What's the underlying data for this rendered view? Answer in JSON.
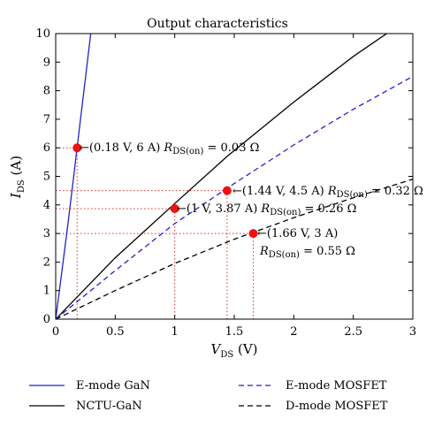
{
  "chart_data": {
    "type": "line",
    "title": "Output characteristics",
    "xlabel": {
      "main": "V",
      "sub": "DS",
      "unit": " (V)"
    },
    "ylabel": {
      "main": "I",
      "sub": "DS",
      "unit": " (A)"
    },
    "xlim": [
      0,
      3
    ],
    "ylim": [
      0,
      10
    ],
    "x_ticks": [
      "0",
      "0.5",
      "1",
      "1.5",
      "2",
      "2.5",
      "3"
    ],
    "y_ticks": [
      "0",
      "1",
      "2",
      "3",
      "4",
      "5",
      "6",
      "7",
      "8",
      "9",
      "10"
    ],
    "grid": false,
    "legend_position": "below",
    "series": [
      {
        "name": "E-mode GaN",
        "color": "#2222cc",
        "dash": "solid",
        "x": [
          0,
          0.05,
          0.1,
          0.15,
          0.2,
          0.25,
          0.3
        ],
        "y": [
          0,
          1.6,
          3.25,
          4.95,
          6.7,
          8.45,
          10.2
        ]
      },
      {
        "name": "NCTU-GaN",
        "color": "#000000",
        "dash": "solid",
        "x": [
          0,
          0.5,
          1.0,
          1.44,
          2.0,
          2.5,
          2.78
        ],
        "y": [
          0,
          2.15,
          4.05,
          5.7,
          7.6,
          9.2,
          10.0
        ]
      },
      {
        "name": "E-mode MOSFET",
        "color": "#2222cc",
        "dash": "dashed",
        "x": [
          0,
          0.5,
          1.0,
          1.5,
          2.0,
          2.5,
          3.0
        ],
        "y": [
          0,
          1.7,
          3.35,
          4.75,
          6.1,
          7.35,
          8.5
        ]
      },
      {
        "name": "D-mode MOSFET",
        "color": "#000000",
        "dash": "dashed",
        "x": [
          0,
          0.5,
          1.0,
          1.5,
          2.0,
          2.5,
          3.0
        ],
        "y": [
          0,
          1.0,
          1.95,
          2.8,
          3.55,
          4.25,
          4.9
        ]
      }
    ],
    "markers": [
      {
        "x": 0.18,
        "y": 6.0,
        "label": "←(0.18 V, 6 A) ",
        "r_main": "R",
        "r_sub": "DS(on)",
        "r_value": " = 0.03 Ω"
      },
      {
        "x": 1.44,
        "y": 4.5,
        "label": "←(1.44 V, 4.5 A) ",
        "r_main": "R",
        "r_sub": "DS(on)",
        "r_value": " = 0.32 Ω"
      },
      {
        "x": 1.0,
        "y": 3.87,
        "label": "←(1 V, 3.87 A) ",
        "r_main": "R",
        "r_sub": "DS(on)",
        "r_value": " = 0.26 Ω"
      },
      {
        "x": 1.66,
        "y": 3.0,
        "label": "←(1.66 V, 3 A)",
        "r_main": "R",
        "r_sub": "DS(on)",
        "r_value": " = 0.55 Ω"
      }
    ]
  }
}
